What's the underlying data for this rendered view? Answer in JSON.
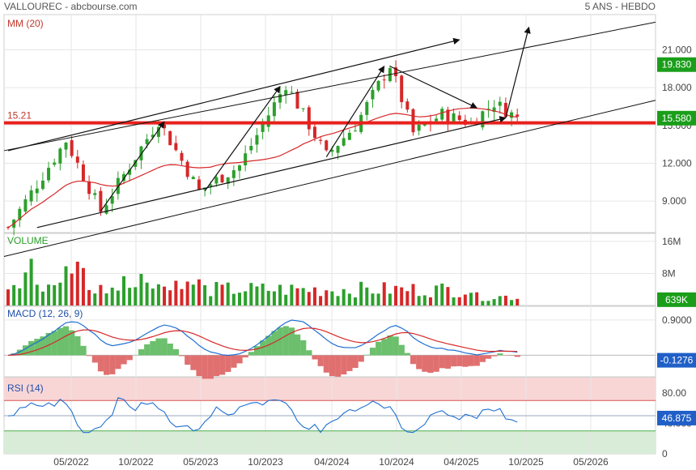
{
  "header": {
    "title": "VALLOUREC - abcbourse.com",
    "period": "5 ANS - HEBDO"
  },
  "colors": {
    "up": "#2ca02c",
    "down": "#d62728",
    "ma": "#d62728",
    "support": "#e8201c",
    "grid": "#e6e6e6",
    "macd": "#1f6fd1",
    "signal": "#d62728",
    "hist_pos": "#6cbf6c",
    "hist_neg": "#e07070",
    "rsi": "#1f6fd1",
    "rsi_over": "#f9d6d6",
    "rsi_under": "#d8ecd8",
    "tag_green": "#1a9e1a",
    "tag_blue": "#1f5fc7"
  },
  "chart_data": [
    {
      "type": "candlestick",
      "name": "price",
      "label": "MM (20)",
      "yticks": [
        9,
        12,
        15,
        18,
        21
      ],
      "ytick_labels": [
        "9.000",
        "12.000",
        "15.000",
        "18.000",
        "21.000"
      ],
      "ylim": [
        6.5,
        23.8
      ],
      "support_level": 15.21,
      "support_label": "15.21",
      "price_tag_top": "19.830",
      "price_tag_top_value": 19.83,
      "last_price": "15.580",
      "last_price_value": 15.58,
      "xticks": [
        "05/2022",
        "10/2022",
        "05/2023",
        "10/2023",
        "04/2024",
        "10/2024",
        "04/2025",
        "10/2025",
        "05/2026"
      ],
      "weeks_visible": 68,
      "pivots": [
        {
          "w": 0,
          "p": 6.9
        },
        {
          "w": 10,
          "p": 13.8
        },
        {
          "w": 16,
          "p": 8.2
        },
        {
          "w": 26,
          "p": 15.4
        },
        {
          "w": 33,
          "p": 9.8
        },
        {
          "w": 40,
          "p": 11.8
        },
        {
          "w": 48,
          "p": 18.3
        },
        {
          "w": 55,
          "p": 12.6
        },
        {
          "w": 60,
          "p": 15.0
        },
        {
          "w": 66,
          "p": 19.8
        },
        {
          "w": 70,
          "p": 14.4
        },
        {
          "w": 75,
          "p": 15.9
        },
        {
          "w": 80,
          "p": 15.2
        },
        {
          "w": 84,
          "p": 16.8
        },
        {
          "w": 88,
          "p": 15.6
        }
      ],
      "trend_arrows": [
        {
          "w1": 5,
          "p1": 6.9,
          "w2": 86,
          "p2": 15.6
        },
        {
          "w1": 0,
          "p1": 13.0,
          "w2": 78,
          "p2": 21.8
        },
        {
          "w1": 16,
          "p1": 8.2,
          "w2": 27,
          "p2": 15.3
        },
        {
          "w1": 34,
          "p1": 9.8,
          "w2": 47,
          "p2": 18.1
        },
        {
          "w1": 55,
          "p1": 12.5,
          "w2": 65,
          "p2": 19.7
        },
        {
          "w1": 66,
          "p1": 19.7,
          "w2": 81,
          "p2": 16.4
        },
        {
          "w1": 86,
          "p1": 15.6,
          "w2": 90,
          "p2": 22.8
        }
      ]
    },
    {
      "type": "bar",
      "name": "volume",
      "label": "VOLUME",
      "yticks": [
        8,
        16
      ],
      "ytick_labels": [
        "8M",
        "16M"
      ],
      "ylim": [
        0,
        18
      ],
      "last_value": "639K",
      "last_value_num": 0.639
    },
    {
      "type": "line",
      "name": "macd",
      "label": "MACD (12, 26, 9)",
      "ytick_labels": [
        "0.9000"
      ],
      "yticks": [
        0.9
      ],
      "ylim": [
        -0.55,
        1.25
      ],
      "last_value": "-0.1276",
      "last_value_num": -0.1276
    },
    {
      "type": "line",
      "name": "rsi",
      "label": "RSI (14)",
      "yticks": [
        0,
        40,
        80
      ],
      "ytick_labels": [
        "0",
        "40.000",
        "80.00"
      ],
      "ylim": [
        0,
        100
      ],
      "overbought": 70,
      "oversold": 30,
      "last_value": "46.875",
      "last_value_num": 46.875
    }
  ]
}
